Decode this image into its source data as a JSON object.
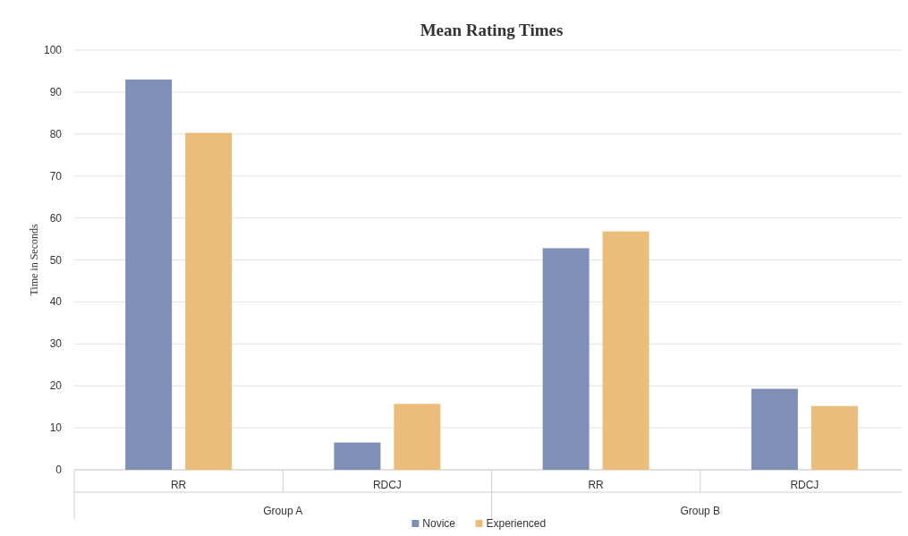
{
  "chart_data": {
    "type": "bar",
    "title": "Mean Rating Times",
    "ylabel": "Time in Seconds",
    "categories": [
      "RR",
      "RDCJ",
      "RR",
      "RDCJ"
    ],
    "annotations": [
      "Group A",
      "Group B"
    ],
    "series": [
      {
        "name": "Novice",
        "color": "#7f8fb5",
        "values": [
          93,
          6.5,
          52.8,
          19.3
        ]
      },
      {
        "name": "Experienced",
        "color": "#ecbc7a",
        "values": [
          80.3,
          15.7,
          56.8,
          15.2
        ]
      }
    ],
    "ylim": [
      0,
      100
    ],
    "yticks": [
      0,
      10,
      20,
      30,
      40,
      50,
      60,
      70,
      80,
      90,
      100
    ],
    "grid": "y",
    "legend": "bottom"
  }
}
